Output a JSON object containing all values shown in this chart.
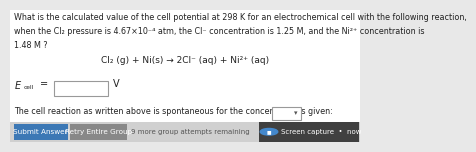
{
  "bg_color": "#e8e8e8",
  "main_bg": "#ffffff",
  "title_lines": [
    "What is the calculated value of the cell potential at 298 K for an electrochemical cell with the following reaction,",
    "when the Cl₂ pressure is 4.67×10⁻⁴ atm, the Cl⁻ concentration is 1.25 M, and the Ni²⁺ concentration is",
    "1.48 M ?"
  ],
  "reaction": "Cl₂ (g) + Ni(s) → 2Cl⁻ (aq) + Ni²⁺ (aq)",
  "ecell_unit": "V",
  "input_box_color": "#ffffff",
  "spontaneous_text": "The cell reaction as written above is spontaneous for the concentrations given:",
  "btn1_text": "Submit Answer",
  "btn1_color": "#3c78b5",
  "btn2_text": "Retry Entire Group",
  "btn2_color": "#888888",
  "attempts_text": "9 more group attempts remaining",
  "screen_capture_text": "Screen capture  •  now",
  "screen_capture_bg": "#404040",
  "screen_icon_color": "#4488cc",
  "font_size_main": 5.8,
  "font_size_reaction": 6.5,
  "font_size_ecell": 7.0,
  "font_size_btn": 5.2,
  "font_size_small": 5.0
}
